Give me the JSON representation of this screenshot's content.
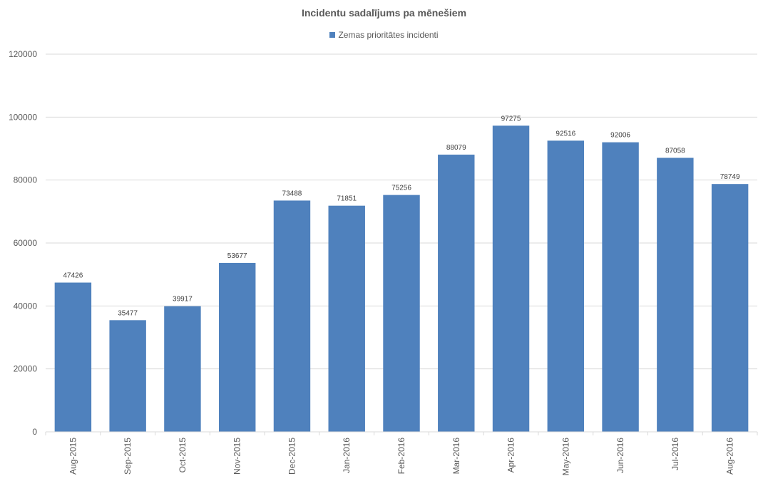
{
  "chart_data": {
    "type": "bar",
    "title": "Incidentu sadalījums pa mēnešiem",
    "xlabel": "",
    "ylabel": "",
    "ylim": [
      0,
      120000
    ],
    "yticks": [
      0,
      20000,
      40000,
      60000,
      80000,
      100000,
      120000
    ],
    "grid": true,
    "legend_position": "top",
    "categories": [
      "Aug-2015",
      "Sep-2015",
      "Oct-2015",
      "Nov-2015",
      "Dec-2015",
      "Jan-2016",
      "Feb-2016",
      "Mar-2016",
      "Apr-2016",
      "May-2016",
      "Jun-2016",
      "Jul-2016",
      "Aug-2016"
    ],
    "series": [
      {
        "name": "Zemas prioritātes incidenti",
        "color": "#4f81bd",
        "values": [
          47426,
          35477,
          39917,
          53677,
          73488,
          71851,
          75256,
          88079,
          97275,
          92516,
          92006,
          87058,
          78749
        ]
      }
    ]
  }
}
